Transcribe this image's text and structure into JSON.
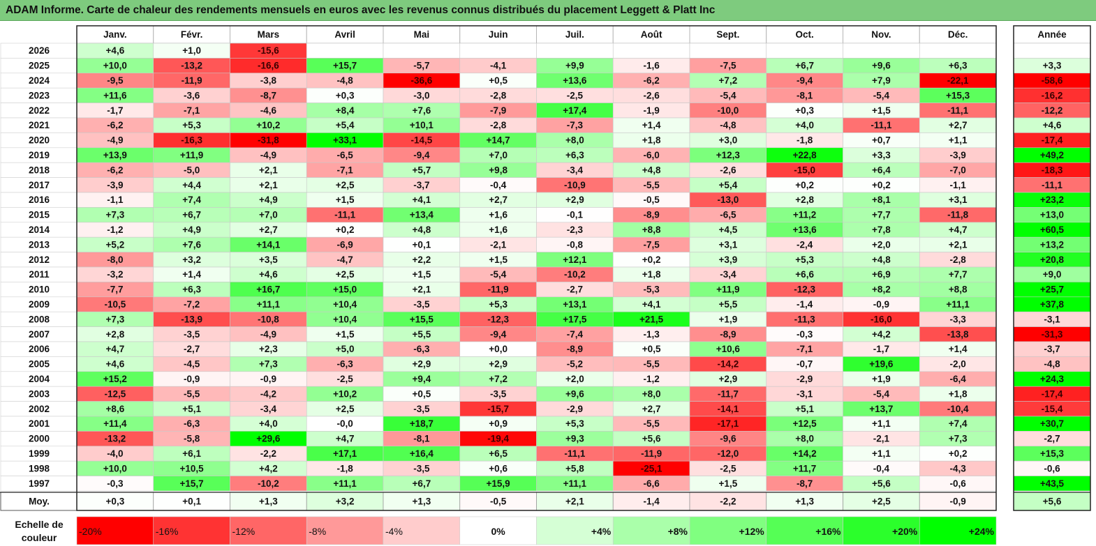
{
  "title": "ADAM Informe. Carte de chaleur des rendements mensuels en euros avec les revenus connus distribués du placement Leggett & Platt Inc",
  "chart_data": {
    "type": "heatmap",
    "months": [
      "Janv.",
      "Févr.",
      "Mars",
      "Avril",
      "Mai",
      "Juin",
      "Juil.",
      "Août",
      "Sept.",
      "Oct.",
      "Nov.",
      "Déc."
    ],
    "year_header": "Année",
    "rows": [
      {
        "year": "2026",
        "values": [
          "+4,6",
          "+1,0",
          "-15,6",
          "",
          "",
          "",
          "",
          "",
          "",
          "",
          "",
          ""
        ],
        "annual": ""
      },
      {
        "year": "2025",
        "values": [
          "+10,0",
          "-13,2",
          "-16,6",
          "+15,7",
          "-5,7",
          "-4,1",
          "+9,9",
          "-1,6",
          "-7,5",
          "+6,7",
          "+9,6",
          "+6,3"
        ],
        "annual": "+3,3"
      },
      {
        "year": "2024",
        "values": [
          "-9,5",
          "-11,9",
          "-3,8",
          "-4,8",
          "-36,6",
          "+0,5",
          "+13,6",
          "-6,2",
          "+7,2",
          "-9,4",
          "+7,9",
          "-22,1"
        ],
        "annual": "-58,6"
      },
      {
        "year": "2023",
        "values": [
          "+11,6",
          "-3,6",
          "-8,7",
          "+0,3",
          "-3,0",
          "-2,8",
          "-2,5",
          "-2,6",
          "-5,4",
          "-8,1",
          "-5,4",
          "+15,3"
        ],
        "annual": "-16,2"
      },
      {
        "year": "2022",
        "values": [
          "-1,7",
          "-7,1",
          "-4,6",
          "+8,4",
          "+7,6",
          "-7,9",
          "+17,4",
          "-1,9",
          "-10,0",
          "+0,3",
          "+1,5",
          "-11,1"
        ],
        "annual": "-12,2"
      },
      {
        "year": "2021",
        "values": [
          "-6,2",
          "+5,3",
          "+10,2",
          "+5,4",
          "+10,1",
          "-2,8",
          "-7,3",
          "+1,4",
          "-4,8",
          "+4,0",
          "-11,1",
          "+2,7"
        ],
        "annual": "+4,6"
      },
      {
        "year": "2020",
        "values": [
          "-4,9",
          "-16,3",
          "-31,8",
          "+33,1",
          "-14,5",
          "+14,7",
          "+8,0",
          "+1,8",
          "+3,0",
          "-1,8",
          "+0,7",
          "+1,1"
        ],
        "annual": "-17,4"
      },
      {
        "year": "2019",
        "values": [
          "+13,9",
          "+11,9",
          "-4,9",
          "-6,5",
          "-9,4",
          "+7,0",
          "+6,3",
          "-6,0",
          "+12,3",
          "+22,8",
          "+3,3",
          "-3,9"
        ],
        "annual": "+49,2"
      },
      {
        "year": "2018",
        "values": [
          "-6,2",
          "-5,0",
          "+2,1",
          "-7,1",
          "+5,7",
          "+9,8",
          "-3,4",
          "+4,8",
          "-2,6",
          "-15,0",
          "+6,4",
          "-7,0"
        ],
        "annual": "-18,3"
      },
      {
        "year": "2017",
        "values": [
          "-3,9",
          "+4,4",
          "+2,1",
          "+2,5",
          "-3,7",
          "-0,4",
          "-10,9",
          "-5,5",
          "+5,4",
          "+0,2",
          "+0,2",
          "-1,1"
        ],
        "annual": "-11,1"
      },
      {
        "year": "2016",
        "values": [
          "-1,1",
          "+7,4",
          "+4,9",
          "+1,5",
          "+4,1",
          "+2,7",
          "+2,9",
          "-0,5",
          "-13,0",
          "+2,8",
          "+8,1",
          "+3,1"
        ],
        "annual": "+23,2"
      },
      {
        "year": "2015",
        "values": [
          "+7,3",
          "+6,7",
          "+7,0",
          "-11,1",
          "+13,4",
          "+1,6",
          "-0,1",
          "-8,9",
          "-6,5",
          "+11,2",
          "+7,7",
          "-11,8"
        ],
        "annual": "+13,0"
      },
      {
        "year": "2014",
        "values": [
          "-1,2",
          "+4,9",
          "+2,7",
          "+0,2",
          "+4,8",
          "+1,6",
          "-2,3",
          "+8,8",
          "+4,5",
          "+13,6",
          "+7,8",
          "+4,7"
        ],
        "annual": "+60,5"
      },
      {
        "year": "2013",
        "values": [
          "+5,2",
          "+7,6",
          "+14,1",
          "-6,9",
          "+0,1",
          "-2,1",
          "-0,8",
          "-7,5",
          "+3,1",
          "-2,4",
          "+2,0",
          "+2,1"
        ],
        "annual": "+13,2"
      },
      {
        "year": "2012",
        "values": [
          "-8,0",
          "+3,2",
          "+3,5",
          "-4,7",
          "+2,2",
          "+1,5",
          "+12,1",
          "+0,2",
          "+3,9",
          "+5,3",
          "+4,8",
          "-2,8"
        ],
        "annual": "+20,8"
      },
      {
        "year": "2011",
        "values": [
          "-3,2",
          "+1,4",
          "+4,6",
          "+2,5",
          "+1,5",
          "-5,4",
          "-10,2",
          "+1,8",
          "-3,4",
          "+6,6",
          "+6,9",
          "+7,7"
        ],
        "annual": "+9,0"
      },
      {
        "year": "2010",
        "values": [
          "-7,7",
          "+6,3",
          "+16,7",
          "+15,0",
          "+2,1",
          "-11,9",
          "-2,7",
          "-5,3",
          "+11,9",
          "-12,3",
          "+8,2",
          "+8,8"
        ],
        "annual": "+25,7"
      },
      {
        "year": "2009",
        "values": [
          "-10,5",
          "-7,2",
          "+11,1",
          "+10,4",
          "-3,5",
          "+5,3",
          "+13,1",
          "+4,1",
          "+5,5",
          "-1,4",
          "-0,9",
          "+11,1"
        ],
        "annual": "+37,8"
      },
      {
        "year": "2008",
        "values": [
          "+7,3",
          "-13,9",
          "-10,8",
          "+10,4",
          "+15,5",
          "-12,3",
          "+17,5",
          "+21,5",
          "+1,9",
          "-11,3",
          "-16,0",
          "-3,3"
        ],
        "annual": "-3,1"
      },
      {
        "year": "2007",
        "values": [
          "+2,8",
          "-3,5",
          "-4,9",
          "+1,5",
          "+5,5",
          "-9,4",
          "-7,4",
          "-1,3",
          "-8,9",
          "-0,3",
          "+4,2",
          "-13,8"
        ],
        "annual": "-31,3"
      },
      {
        "year": "2006",
        "values": [
          "+4,7",
          "-2,7",
          "+2,3",
          "+5,0",
          "-6,3",
          "+0,0",
          "-8,9",
          "+0,5",
          "+10,6",
          "-7,1",
          "-1,7",
          "+1,4"
        ],
        "annual": "-3,7"
      },
      {
        "year": "2005",
        "values": [
          "+4,6",
          "-4,5",
          "+7,3",
          "-6,3",
          "+2,9",
          "+2,9",
          "-5,2",
          "-5,5",
          "-14,2",
          "-0,7",
          "+19,6",
          "-2,0"
        ],
        "annual": "-4,8"
      },
      {
        "year": "2004",
        "values": [
          "+15,2",
          "-0,9",
          "-0,9",
          "-2,5",
          "+9,4",
          "+7,2",
          "+2,0",
          "-1,2",
          "+2,9",
          "-2,9",
          "+1,9",
          "-6,4"
        ],
        "annual": "+24,3"
      },
      {
        "year": "2003",
        "values": [
          "-12,5",
          "-5,5",
          "-4,2",
          "+10,2",
          "+0,5",
          "-3,5",
          "+9,6",
          "+8,0",
          "-11,7",
          "-3,1",
          "-5,4",
          "+1,8"
        ],
        "annual": "-17,4"
      },
      {
        "year": "2002",
        "values": [
          "+8,6",
          "+5,1",
          "-3,4",
          "+2,5",
          "-3,5",
          "-15,7",
          "-2,9",
          "+2,7",
          "-14,1",
          "+5,1",
          "+13,7",
          "-10,4"
        ],
        "annual": "-15,4"
      },
      {
        "year": "2001",
        "values": [
          "+11,4",
          "-6,3",
          "+4,0",
          "-0,0",
          "+18,7",
          "+0,9",
          "+5,3",
          "-5,5",
          "-17,1",
          "+12,5",
          "+1,1",
          "+7,4"
        ],
        "annual": "+30,7"
      },
      {
        "year": "2000",
        "values": [
          "-13,2",
          "-5,8",
          "+29,6",
          "+4,7",
          "-8,1",
          "-19,4",
          "+9,3",
          "+5,6",
          "-9,6",
          "+8,0",
          "-2,1",
          "+7,3"
        ],
        "annual": "-2,7"
      },
      {
        "year": "1999",
        "values": [
          "-4,0",
          "+6,1",
          "-2,2",
          "+17,1",
          "+16,4",
          "+6,5",
          "-11,1",
          "-11,9",
          "-12,0",
          "+14,2",
          "+1,1",
          "+0,2"
        ],
        "annual": "+15,3"
      },
      {
        "year": "1998",
        "values": [
          "+10,0",
          "+10,5",
          "+4,2",
          "-1,8",
          "-3,5",
          "+0,6",
          "+5,8",
          "-25,1",
          "-2,5",
          "+11,7",
          "-0,4",
          "-4,3"
        ],
        "annual": "-0,6"
      },
      {
        "year": "1997",
        "values": [
          "-0,3",
          "+15,7",
          "-10,2",
          "+11,1",
          "+6,7",
          "+15,9",
          "+11,1",
          "-6,6",
          "+1,5",
          "-8,7",
          "+5,6",
          "-0,6"
        ],
        "annual": "+43,5"
      }
    ],
    "average": {
      "label": "Moy.",
      "values": [
        "+0,3",
        "+0,1",
        "+1,3",
        "+3,2",
        "+1,3",
        "-0,5",
        "+2,1",
        "-1,4",
        "-2,2",
        "+1,3",
        "+2,5",
        "-0,9"
      ],
      "annual": "+5,6"
    },
    "scale": {
      "label_line1": "Echelle de",
      "label_line2": "couleur",
      "steps": [
        "-20%",
        "-16%",
        "-12%",
        "-8%",
        "-4%",
        "0%",
        "+4%",
        "+8%",
        "+12%",
        "+16%",
        "+20%",
        "+24%"
      ]
    }
  },
  "colors": {
    "title_bar": "#7ecb7e",
    "negative_max": "#ff0000",
    "positive_max": "#00ff00",
    "neutral": "#ffffff"
  }
}
